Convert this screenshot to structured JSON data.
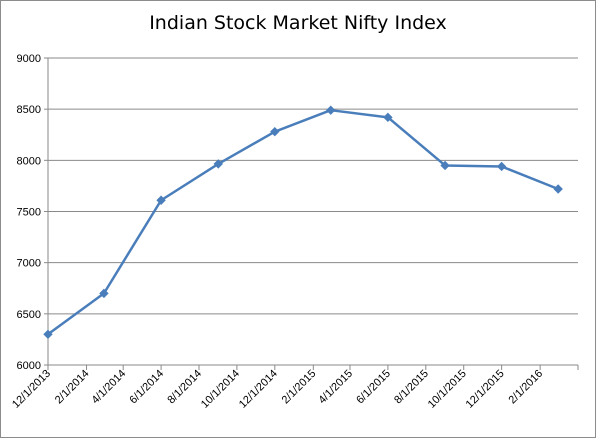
{
  "chart_data": {
    "type": "line",
    "title": "Indian Stock Market Nifty Index",
    "xlabel": "",
    "ylabel": "",
    "categories": [
      "12/1/2013",
      "2/1/2014",
      "4/1/2014",
      "6/1/2014",
      "8/1/2014",
      "10/1/2014",
      "12/1/2014",
      "2/1/2015",
      "4/1/2015",
      "6/1/2015",
      "8/1/2015",
      "10/1/2015",
      "12/1/2015",
      "2/1/2016"
    ],
    "points": [
      {
        "x": "12/1/2013",
        "y": 6300
      },
      {
        "x": "3/1/2014",
        "y": 6700
      },
      {
        "x": "6/1/2014",
        "y": 7610
      },
      {
        "x": "9/1/2014",
        "y": 7965
      },
      {
        "x": "12/1/2014",
        "y": 8280
      },
      {
        "x": "3/1/2015",
        "y": 8490
      },
      {
        "x": "6/1/2015",
        "y": 8420
      },
      {
        "x": "9/1/2015",
        "y": 7950
      },
      {
        "x": "12/1/2015",
        "y": 7940
      },
      {
        "x": "3/1/2016",
        "y": 7720
      }
    ],
    "yticks": [
      6000,
      6500,
      7000,
      7500,
      8000,
      8500,
      9000
    ],
    "ylim": [
      6000,
      9000
    ],
    "grid": true,
    "line_color": "#4a7ebb"
  }
}
